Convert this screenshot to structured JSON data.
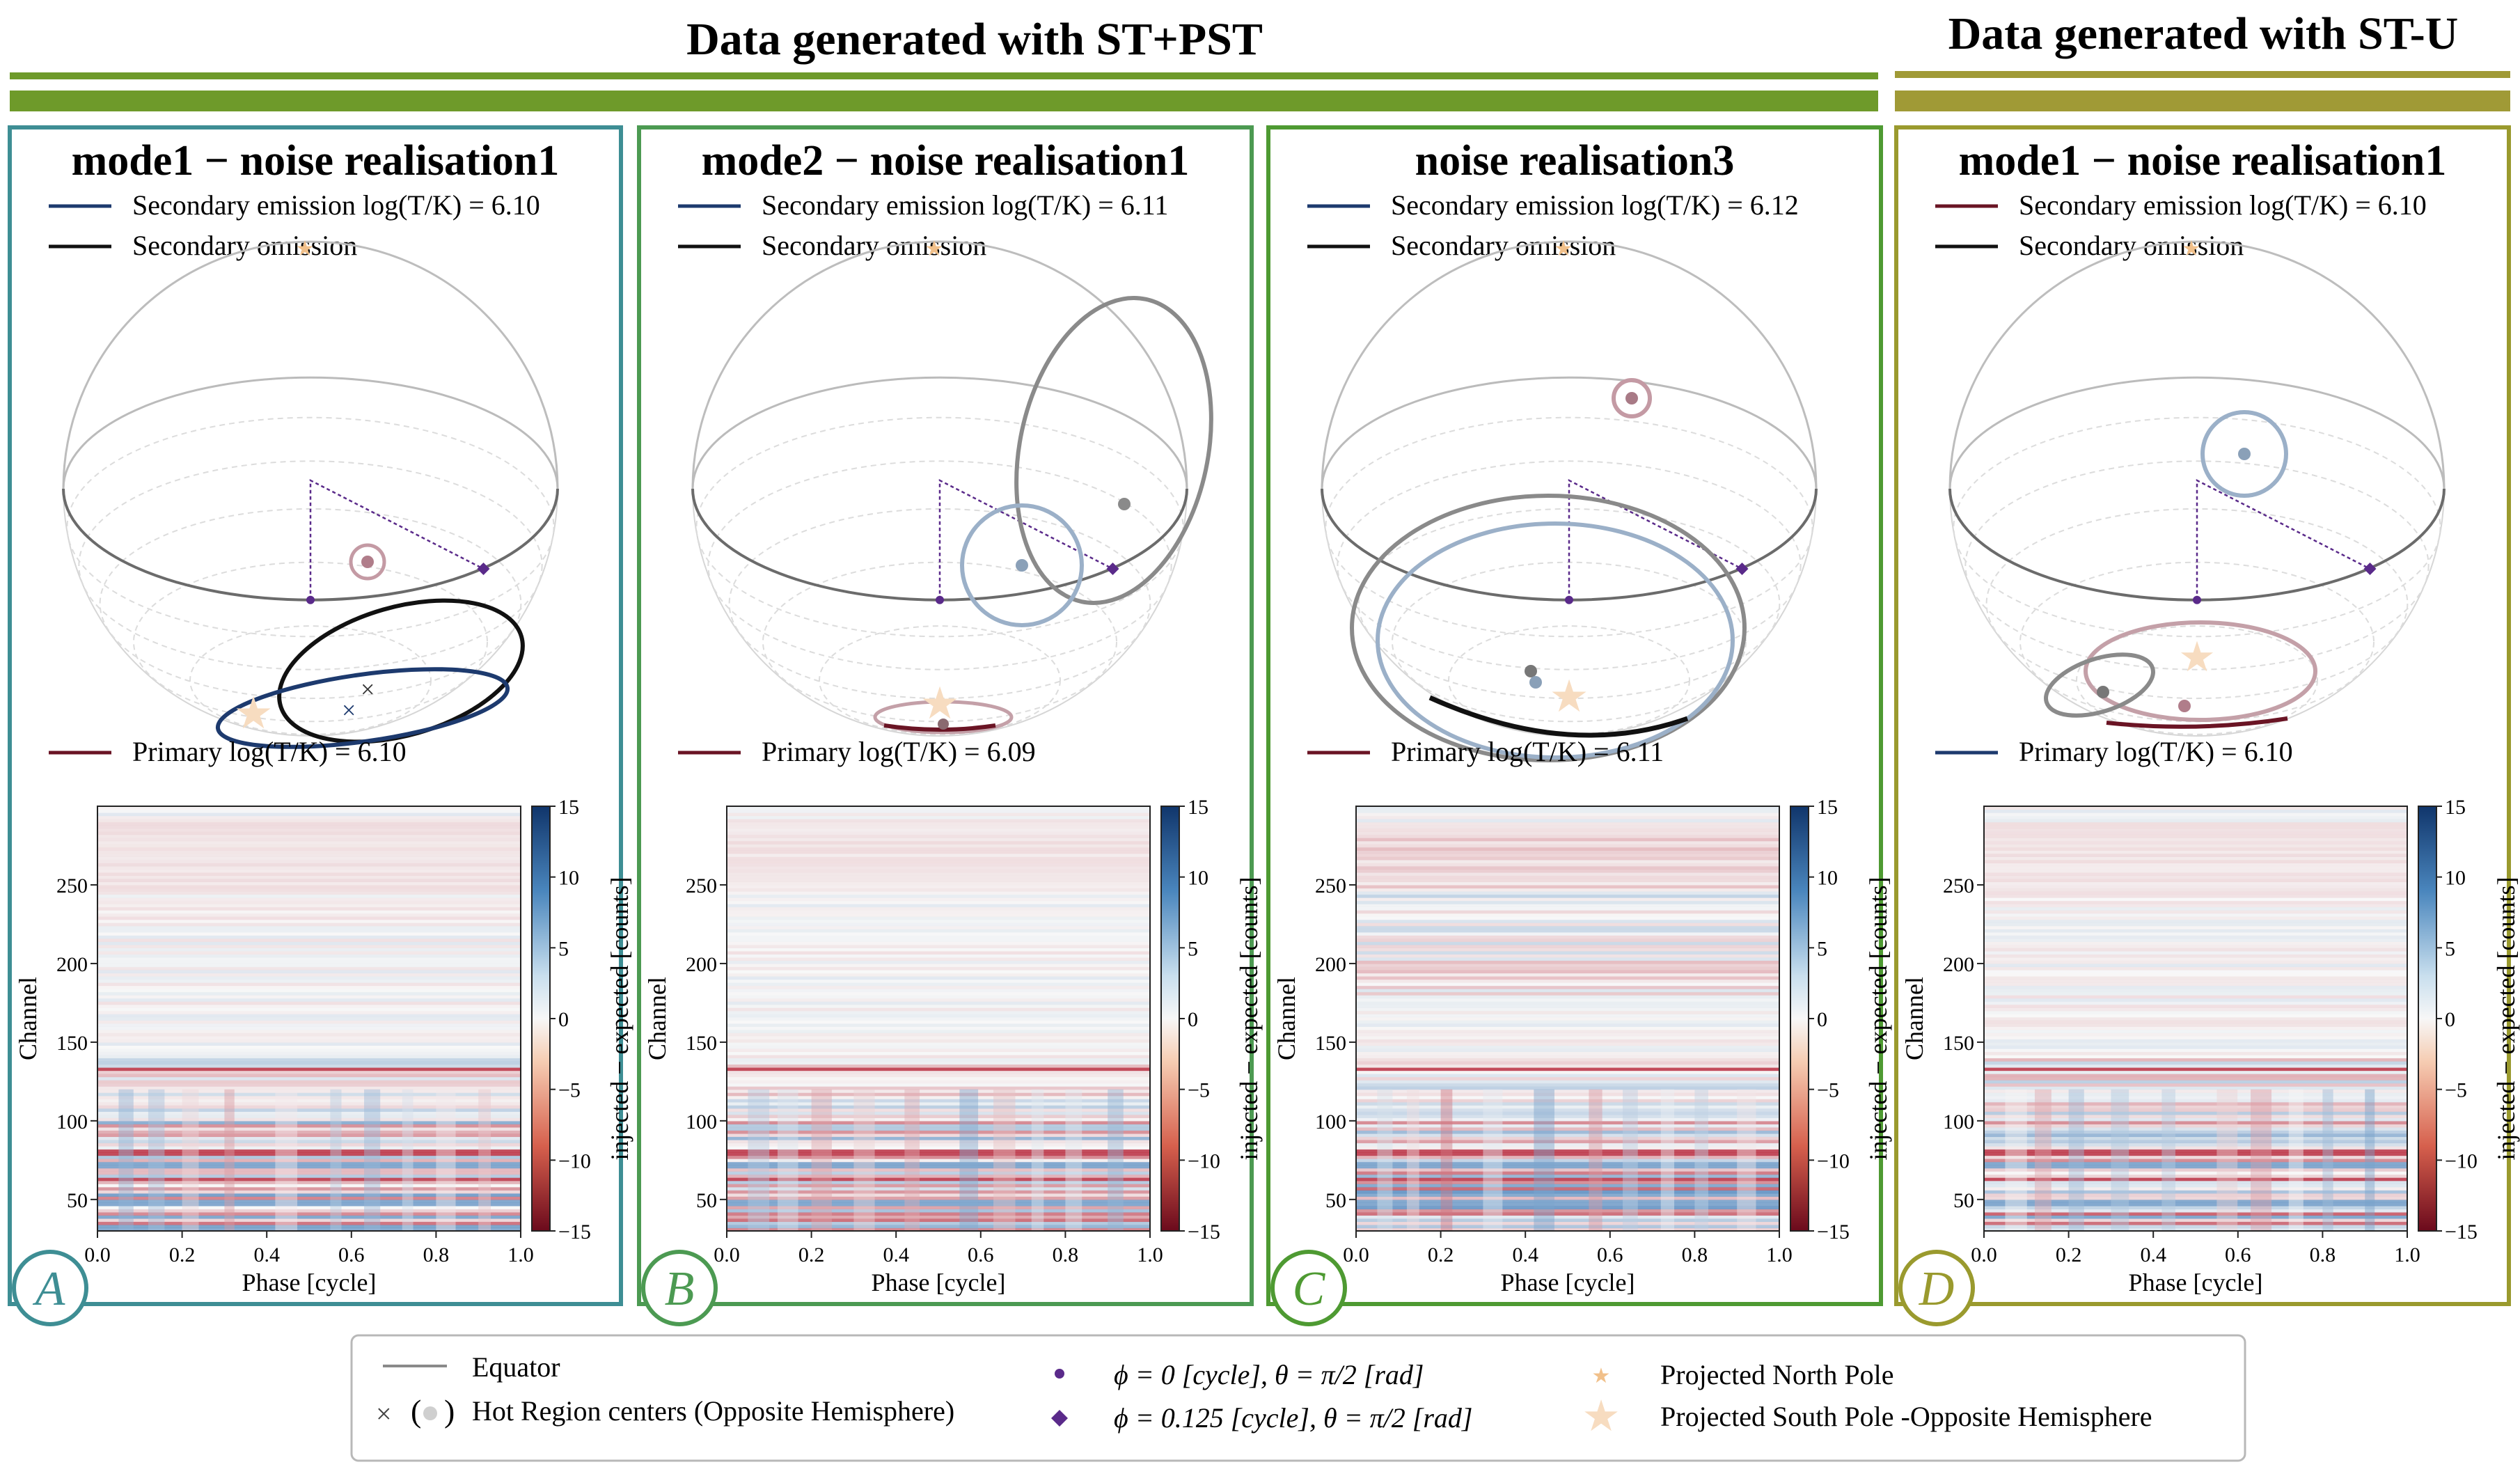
{
  "headers": {
    "left": "Data generated with ST+PST",
    "right": "Data generated with ST-U"
  },
  "colors": {
    "teal": "#3e8e94",
    "green_mid": "#4c9a52",
    "green_dark": "#4e9a32",
    "olive": "#9a9a2e",
    "bar_green": "#6e9a2a",
    "bar_olive": "#a09a36",
    "navy": "#1d3a6e",
    "maroon": "#6a1424",
    "pole_star": "#f1c08a",
    "phi_marker": "#5a2a8a"
  },
  "panels": [
    {
      "letter": "A",
      "title": "mode1 − noise realisation1",
      "legend_top": [
        {
          "label": "Secondary emission log(T/K) = 6.10",
          "color": "#1d3a6e"
        },
        {
          "label": "Secondary omission",
          "color": "#111111"
        }
      ],
      "legend_bottom": {
        "label": "Primary log(T/K) = 6.10",
        "color": "#6a1424"
      }
    },
    {
      "letter": "B",
      "title": "mode2 − noise realisation1",
      "legend_top": [
        {
          "label": "Secondary emission log(T/K) = 6.11",
          "color": "#1d3a6e"
        },
        {
          "label": "Secondary omission",
          "color": "#111111"
        }
      ],
      "legend_bottom": {
        "label": "Primary log(T/K) = 6.09",
        "color": "#6a1424"
      }
    },
    {
      "letter": "C",
      "title": "noise realisation3",
      "legend_top": [
        {
          "label": "Secondary emission log(T/K) = 6.12",
          "color": "#1d3a6e"
        },
        {
          "label": "Secondary omission",
          "color": "#111111"
        }
      ],
      "legend_bottom": {
        "label": "Primary log(T/K) = 6.11",
        "color": "#6a1424"
      }
    },
    {
      "letter": "D",
      "title": "mode1 − noise realisation1",
      "legend_top": [
        {
          "label": "Secondary emission log(T/K) = 6.10",
          "color": "#6a1424"
        },
        {
          "label": "Secondary omission",
          "color": "#111111"
        }
      ],
      "legend_bottom": {
        "label": "Primary log(T/K) = 6.10",
        "color": "#1d3a6e"
      }
    }
  ],
  "chart_data": {
    "type": "heatmap",
    "xlabel": "Phase [cycle]",
    "ylabel": "Channel",
    "colorbar_label": "injected − expected [counts]",
    "xlim": [
      0.0,
      1.0
    ],
    "ylim": [
      30,
      300
    ],
    "x_ticks": [
      "0.0",
      "0.2",
      "0.4",
      "0.6",
      "0.8",
      "1.0"
    ],
    "y_ticks": [
      "50",
      "100",
      "150",
      "200",
      "250"
    ],
    "colorbar_range": [
      -15,
      15
    ],
    "colorbar_ticks": [
      "15",
      "10",
      "5",
      "0",
      "−5",
      "−10",
      "−15"
    ],
    "colormap": "RdBu"
  },
  "legend": {
    "equator": "Equator",
    "hot_region": "Hot Region centers",
    "opposite": "Opposite Hemisphere",
    "phi0": "ϕ = 0 [cycle], θ = π/2 [rad]",
    "phi0125": "ϕ = 0.125 [cycle], θ = π/2 [rad]",
    "north_pole": "Projected North Pole",
    "south_pole": "Projected South Pole",
    "south_pole_suffix": "-Opposite Hemisphere"
  }
}
